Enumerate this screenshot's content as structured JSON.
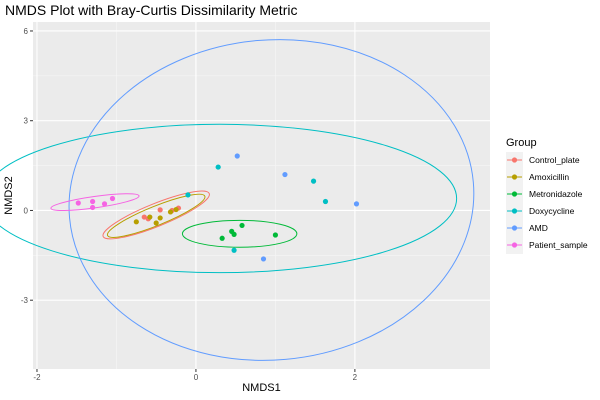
{
  "chart_data": {
    "type": "scatter",
    "title": "NMDS Plot with Bray-Curtis Dissimilarity Metric",
    "xlabel": "NMDS1",
    "ylabel": "NMDS2",
    "xlim": [
      -2.05,
      3.7
    ],
    "ylim": [
      -5.3,
      6.3
    ],
    "xticks": [
      -2,
      0,
      2
    ],
    "xtick_labels": [
      "-2",
      "0",
      "2"
    ],
    "yticks": [
      -3,
      0,
      3,
      6
    ],
    "ytick_labels": [
      "-3",
      "0",
      "3",
      "6"
    ],
    "grid": true,
    "legend": {
      "title": "Group",
      "placement": "right"
    },
    "series": [
      {
        "name": "Control_plate",
        "color": "#F8766D",
        "points": [
          [
            -0.45,
            0.02
          ],
          [
            -0.6,
            -0.28
          ],
          [
            -0.22,
            0.08
          ],
          [
            -0.3,
            0.0
          ],
          [
            -0.65,
            -0.22
          ]
        ],
        "ellipse": {
          "cx": -0.5,
          "cy": -0.15,
          "rx": 0.72,
          "ry": 0.38,
          "angle": 22
        }
      },
      {
        "name": "Amoxicillin",
        "color": "#B79F00",
        "points": [
          [
            -0.58,
            -0.22
          ],
          [
            -0.5,
            -0.42
          ],
          [
            -0.45,
            -0.25
          ],
          [
            -0.32,
            -0.05
          ],
          [
            -0.25,
            0.03
          ],
          [
            -0.75,
            -0.38
          ]
        ],
        "ellipse": {
          "cx": -0.5,
          "cy": -0.18,
          "rx": 0.66,
          "ry": 0.32,
          "angle": 22
        }
      },
      {
        "name": "Metronidazole",
        "color": "#00BA38",
        "points": [
          [
            0.33,
            -0.93
          ],
          [
            0.45,
            -0.7
          ],
          [
            0.48,
            -0.8
          ],
          [
            0.58,
            -0.5
          ],
          [
            1.0,
            -0.82
          ]
        ],
        "ellipse": {
          "cx": 0.55,
          "cy": -0.78,
          "rx": 0.72,
          "ry": 0.45,
          "angle": 0
        }
      },
      {
        "name": "Doxycycline",
        "color": "#00BFC4",
        "points": [
          [
            -0.1,
            0.52
          ],
          [
            0.28,
            1.45
          ],
          [
            1.48,
            0.98
          ],
          [
            1.63,
            0.3
          ],
          [
            0.48,
            -1.33
          ]
        ],
        "ellipse": {
          "cx": 0.3,
          "cy": 0.4,
          "rx": 2.98,
          "ry": 2.48,
          "angle": 0
        }
      },
      {
        "name": "AMD",
        "color": "#619CFF",
        "points": [
          [
            0.52,
            1.82
          ],
          [
            1.12,
            1.2
          ],
          [
            2.02,
            0.22
          ],
          [
            0.85,
            -1.62
          ]
        ],
        "ellipse": {
          "cx": 0.95,
          "cy": 0.35,
          "rx": 2.55,
          "ry": 5.35,
          "angle": 5
        }
      },
      {
        "name": "Patient_sample",
        "color": "#F564E3",
        "points": [
          [
            -1.48,
            0.25
          ],
          [
            -1.3,
            0.3
          ],
          [
            -1.3,
            0.1
          ],
          [
            -1.15,
            0.22
          ],
          [
            -1.05,
            0.4
          ]
        ],
        "ellipse": {
          "cx": -1.27,
          "cy": 0.28,
          "rx": 0.56,
          "ry": 0.19,
          "angle": 8
        }
      }
    ]
  }
}
